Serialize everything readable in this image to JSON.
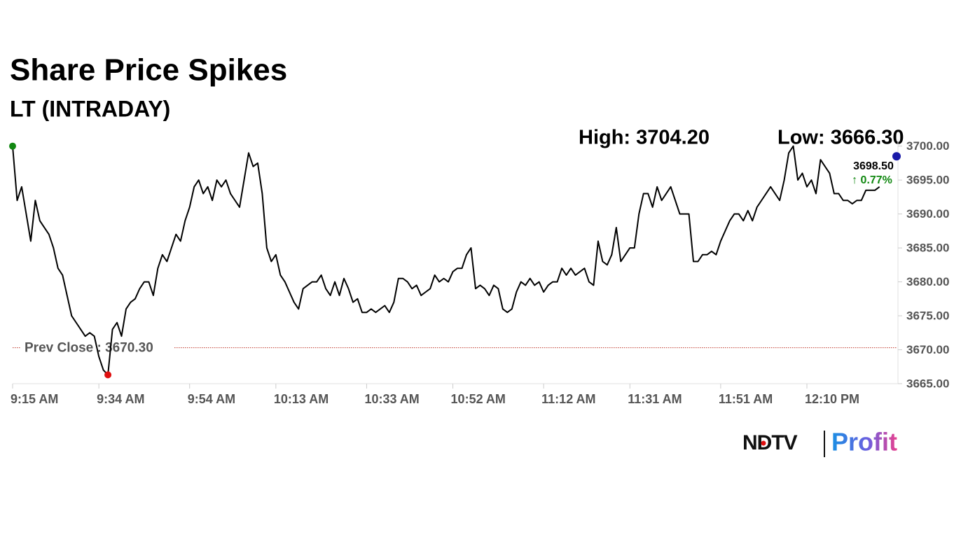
{
  "chart_data": {
    "type": "line",
    "title": "Share Price Spikes",
    "subtitle": "LT (INTRADAY)",
    "high_label": "High: 3704.20",
    "low_label": "Low: 3666.30",
    "categories": [
      "9:15 AM",
      null,
      null,
      null,
      null,
      null,
      null,
      null,
      null,
      null,
      null,
      null,
      null,
      null,
      null,
      null,
      null,
      null,
      null,
      "9:34 AM",
      null,
      null,
      null,
      null,
      null,
      null,
      null,
      null,
      null,
      null,
      null,
      null,
      null,
      null,
      null,
      null,
      null,
      null,
      null,
      "9:54 AM",
      null,
      null,
      null,
      null,
      null,
      null,
      null,
      null,
      null,
      null,
      null,
      null,
      null,
      null,
      null,
      null,
      null,
      null,
      "10:13 AM",
      null,
      null,
      null,
      null,
      null,
      null,
      null,
      null,
      null,
      null,
      null,
      null,
      null,
      null,
      null,
      null,
      null,
      null,
      null,
      "10:33 AM",
      null,
      null,
      null,
      null,
      null,
      null,
      null,
      null,
      null,
      null,
      null,
      null,
      null,
      null,
      null,
      null,
      null,
      null,
      "10:52 AM",
      null,
      null,
      null,
      null,
      null,
      null,
      null,
      null,
      null,
      null,
      null,
      null,
      null,
      null,
      null,
      null,
      null,
      null,
      null,
      "11:12 AM",
      null,
      null,
      null,
      null,
      null,
      null,
      null,
      null,
      null,
      null,
      null,
      null,
      null,
      null,
      null,
      null,
      null,
      null,
      "11:31 AM",
      null,
      null,
      null,
      null,
      null,
      null,
      null,
      null,
      null,
      null,
      null,
      null,
      null,
      null,
      null,
      null,
      null,
      null,
      null,
      "11:51 AM",
      null,
      null,
      null,
      null,
      null,
      null,
      null,
      null,
      null,
      null,
      null,
      null,
      null,
      null,
      null,
      null,
      null,
      null,
      "12:10 PM",
      null,
      null,
      null,
      null,
      null,
      null,
      null,
      null,
      null,
      null,
      null,
      null,
      null,
      null,
      null,
      null
    ],
    "values": [
      3700,
      3692,
      3694,
      3690,
      3686,
      3692,
      3689,
      3688,
      3687,
      3685,
      3682,
      3681,
      3678,
      3675,
      3674,
      3673,
      3672,
      3672.5,
      3672,
      3669,
      3667,
      3666.3,
      3673,
      3674,
      3672,
      3676,
      3677,
      3677.5,
      3679,
      3680,
      3680,
      3678,
      3682,
      3684,
      3683,
      3685,
      3687,
      3686,
      3689,
      3691,
      3694,
      3695,
      3693,
      3694,
      3692,
      3695,
      3694,
      3695,
      3693,
      3692,
      3691,
      3695,
      3699,
      3697,
      3697.5,
      3693,
      3685,
      3683,
      3684,
      3681,
      3680,
      3678.5,
      3677,
      3676,
      3679,
      3679.5,
      3680,
      3680,
      3681,
      3679,
      3678,
      3680,
      3678,
      3680.5,
      3679,
      3677,
      3677.5,
      3675.5,
      3675.5,
      3676,
      3675.5,
      3676,
      3676.5,
      3675.5,
      3677,
      3680.5,
      3680.5,
      3680,
      3679,
      3679.5,
      3678,
      3678.5,
      3679,
      3681,
      3680,
      3680.5,
      3680,
      3681.5,
      3682,
      3682,
      3684,
      3685,
      3679,
      3679.5,
      3679,
      3678,
      3679.5,
      3679,
      3676,
      3675.5,
      3676,
      3678.5,
      3680,
      3679.5,
      3680.5,
      3679.5,
      3680,
      3678.5,
      3679.5,
      3680,
      3680,
      3682,
      3681,
      3682,
      3681,
      3681.5,
      3682,
      3680,
      3679.5,
      3686,
      3683,
      3682.5,
      3684,
      3688,
      3683,
      3684,
      3685,
      3685,
      3690,
      3693,
      3693,
      3691,
      3694,
      3692,
      3693,
      3694,
      3692,
      3690,
      3690,
      3690,
      3683,
      3683,
      3684,
      3684,
      3684.5,
      3684,
      3686,
      3687.5,
      3689,
      3690,
      3690,
      3689,
      3690.5,
      3689,
      3691,
      3692,
      3693,
      3694,
      3693,
      3692,
      3695,
      3699,
      3700,
      3695,
      3696,
      3694,
      3695,
      3693,
      3698,
      3697,
      3696,
      3693,
      3693,
      3692,
      3692,
      3691.5,
      3692,
      3692,
      3693.5,
      3693.5,
      3693.5,
      3694
    ],
    "color": "#000000",
    "start_marker_color": "#118811",
    "low_marker_color": "#e01010",
    "ylim": [
      3665,
      3701
    ],
    "yticks": [
      {
        "value": 3665,
        "label": "3665.00"
      },
      {
        "value": 3670,
        "label": "3670.00"
      },
      {
        "value": 3675,
        "label": "3675.00"
      },
      {
        "value": 3680,
        "label": "3680.00"
      },
      {
        "value": 3685,
        "label": "3685.00"
      },
      {
        "value": 3690,
        "label": "3690.00"
      },
      {
        "value": 3695,
        "label": "3695.00"
      },
      {
        "value": 3700,
        "label": "3700.00"
      }
    ],
    "prev_close": 3670.3,
    "prev_close_label": "Prev Close : 3670.30",
    "prev_close_color": "#c0392b",
    "last_price": 3698.5,
    "last_price_label": "3698.50",
    "last_price_color": "#1a1aa8",
    "change_label": "↑ 0.77%",
    "change_color": "#118811",
    "brand": {
      "name": "NDTV",
      "product": "Profit"
    }
  }
}
